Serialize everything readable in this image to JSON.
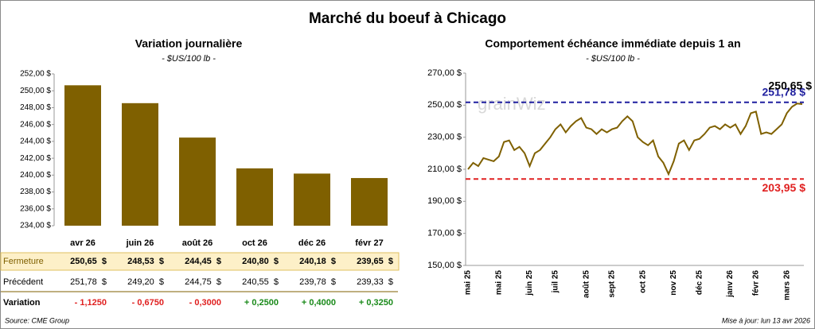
{
  "title": "Marché du boeuf à Chicago",
  "chart_data": [
    {
      "type": "bar",
      "title": "Variation journalière",
      "subtitle": "- $US/100 lb -",
      "color": "#7f6000",
      "categories": [
        "avr 26",
        "juin 26",
        "août 26",
        "oct 26",
        "déc 26",
        "févr 27"
      ],
      "values": [
        250.65,
        248.53,
        244.45,
        240.8,
        240.18,
        239.65
      ],
      "ylim": [
        234,
        252
      ],
      "yticks": [
        {
          "value": 234,
          "label": "234,00 $"
        },
        {
          "value": 236,
          "label": "236,00 $"
        },
        {
          "value": 238,
          "label": "238,00 $"
        },
        {
          "value": 240,
          "label": "240,00 $"
        },
        {
          "value": 242,
          "label": "242,00 $"
        },
        {
          "value": 244,
          "label": "244,00 $"
        },
        {
          "value": 246,
          "label": "246,00 $"
        },
        {
          "value": 248,
          "label": "248,00 $"
        },
        {
          "value": 250,
          "label": "250,00 $"
        },
        {
          "value": 252,
          "label": "252,00 $"
        }
      ]
    },
    {
      "type": "line",
      "title": "Comportement  échéance immédiate depuis 1 an",
      "subtitle": "- $US/100 lb -",
      "color": "#7f6000",
      "watermark": "grainWiz",
      "categories": [
        "mai 25",
        null,
        null,
        null,
        null,
        null,
        "mai 25",
        null,
        null,
        null,
        null,
        null,
        "juin 25",
        null,
        null,
        null,
        null,
        "juil 25",
        null,
        null,
        null,
        null,
        null,
        "août 25",
        null,
        null,
        null,
        null,
        "sept 25",
        null,
        null,
        null,
        null,
        null,
        "oct 25",
        null,
        null,
        null,
        null,
        null,
        "nov 25",
        null,
        null,
        null,
        null,
        "déc 25",
        null,
        null,
        null,
        null,
        null,
        "janv 26",
        null,
        null,
        null,
        null,
        "févr 26",
        null,
        null,
        null,
        null,
        null,
        "mars 26",
        null,
        null,
        null
      ],
      "values": [
        210,
        214,
        212,
        217,
        216,
        215,
        218,
        227,
        228,
        222,
        224,
        220,
        212,
        220,
        222,
        226,
        230,
        235,
        238,
        233,
        237,
        240,
        242,
        236,
        235,
        232,
        235,
        233,
        235,
        236,
        240,
        243,
        240,
        230,
        227,
        225,
        228,
        218,
        214,
        207,
        215,
        226,
        228,
        222,
        228,
        229,
        232,
        236,
        237,
        235,
        238,
        236,
        238,
        232,
        237,
        245,
        246,
        232,
        233,
        232,
        235,
        238,
        245,
        249,
        251,
        250.65
      ],
      "ylim": [
        150,
        270
      ],
      "yticks": [
        {
          "value": 150,
          "label": "150,00 $"
        },
        {
          "value": 170,
          "label": "170,00 $"
        },
        {
          "value": 190,
          "label": "190,00 $"
        },
        {
          "value": 210,
          "label": "210,00 $"
        },
        {
          "value": 230,
          "label": "230,00 $"
        },
        {
          "value": 250,
          "label": "250,00 $"
        },
        {
          "value": 270,
          "label": "270,00 $"
        }
      ],
      "reference_lines": [
        {
          "value": 251.78,
          "label": "251,78 $",
          "color": "#1f1f9f"
        },
        {
          "value": 203.95,
          "label": "203,95 $",
          "color": "#e02020"
        }
      ],
      "annotations": [
        {
          "value": 250.65,
          "label": "250,65 $"
        }
      ]
    }
  ],
  "table": {
    "rows": [
      [
        "Fermeture",
        "250,65  $",
        "248,53  $",
        "244,45  $",
        "240,80  $",
        "240,18  $",
        "239,65  $"
      ],
      [
        "Précédent",
        "251,78  $",
        "249,20  $",
        "244,75  $",
        "240,55  $",
        "239,78  $",
        "239,33  $"
      ],
      [
        "Variation",
        "- 1,1250",
        "- 0,6750",
        "- 0,3000",
        "+ 0,2500",
        "+ 0,4000",
        "+ 0,3250"
      ]
    ]
  },
  "source": "Source: CME Group",
  "updated": "Mise à jour: lun 13 avr 2026"
}
